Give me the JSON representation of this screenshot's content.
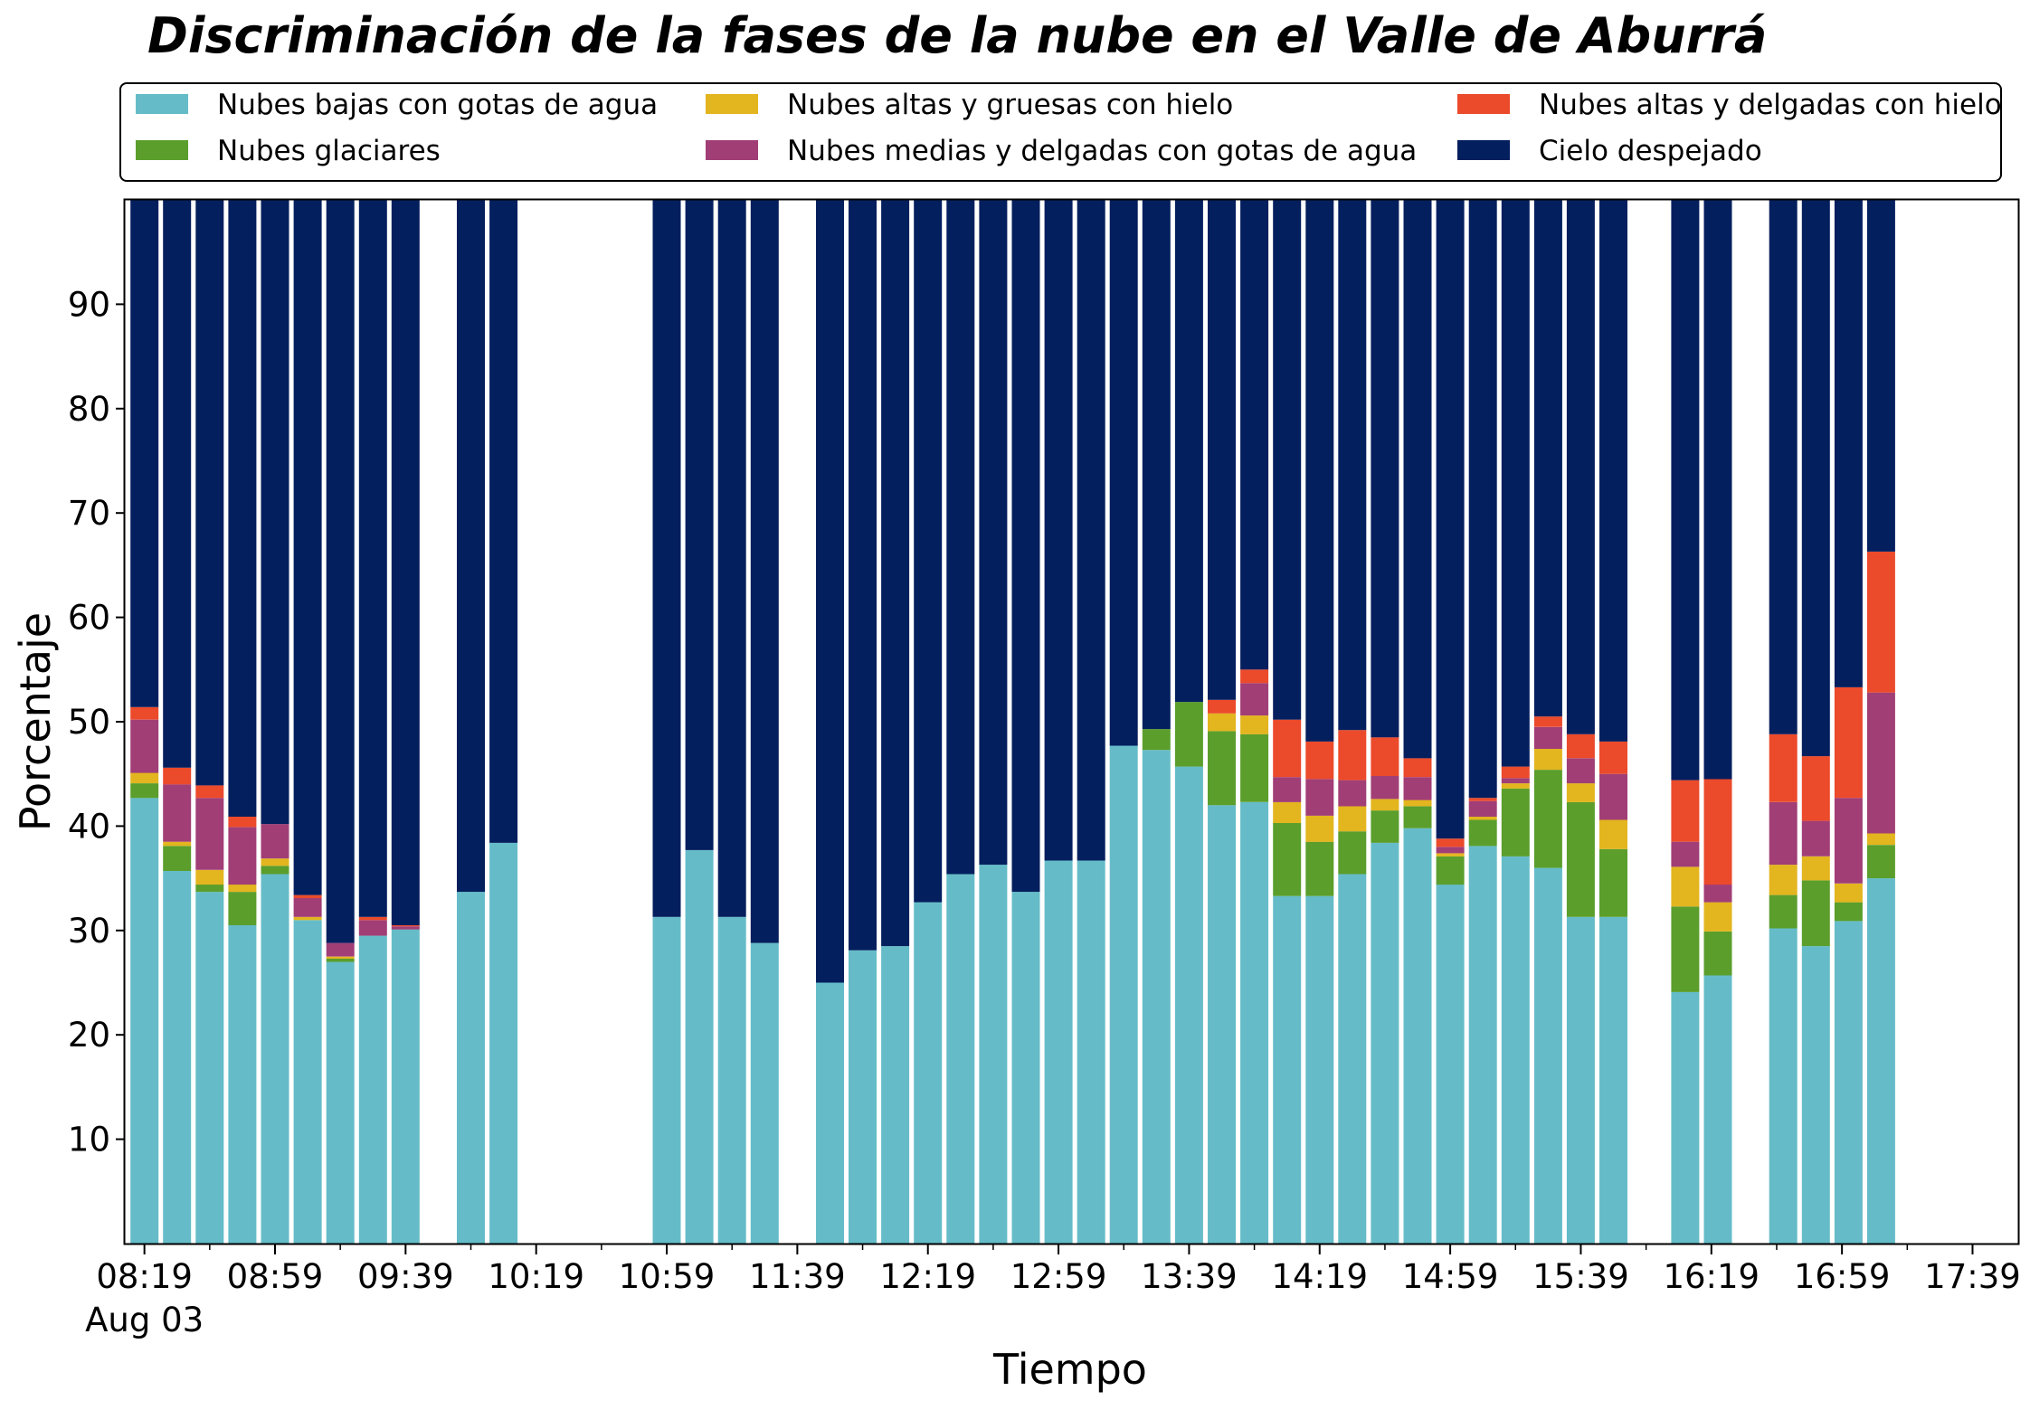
{
  "chart_data": {
    "type": "bar",
    "stacked": true,
    "title": "Discriminación de la fases de la nube en el Valle de Aburrá",
    "xlabel": "Tiempo",
    "ylabel": "Porcentaje",
    "ylim": [
      0,
      100
    ],
    "yticks": [
      10,
      20,
      30,
      40,
      50,
      60,
      70,
      80,
      90
    ],
    "x_range_minutes": [
      "08:13",
      "17:53"
    ],
    "xticks": [
      {
        "time": "08:19",
        "label": "08:19",
        "sublabel": "Aug 03"
      },
      {
        "time": "08:59",
        "label": "08:59"
      },
      {
        "time": "09:39",
        "label": "09:39"
      },
      {
        "time": "10:19",
        "label": "10:19"
      },
      {
        "time": "10:59",
        "label": "10:59"
      },
      {
        "time": "11:39",
        "label": "11:39"
      },
      {
        "time": "12:19",
        "label": "12:19"
      },
      {
        "time": "12:59",
        "label": "12:59"
      },
      {
        "time": "13:39",
        "label": "13:39"
      },
      {
        "time": "14:19",
        "label": "14:19"
      },
      {
        "time": "14:59",
        "label": "14:59"
      },
      {
        "time": "15:39",
        "label": "15:39"
      },
      {
        "time": "16:19",
        "label": "16:19"
      },
      {
        "time": "16:59",
        "label": "16:59"
      },
      {
        "time": "17:39",
        "label": "17:39"
      }
    ],
    "grid": false,
    "legend_position": "top",
    "times": [
      "08:19",
      "08:29",
      "08:39",
      "08:49",
      "08:59",
      "09:09",
      "09:19",
      "09:29",
      "09:39",
      "09:59",
      "10:09",
      "10:59",
      "11:09",
      "11:19",
      "11:29",
      "11:49",
      "11:59",
      "12:09",
      "12:19",
      "12:29",
      "12:39",
      "12:49",
      "12:59",
      "13:09",
      "13:19",
      "13:29",
      "13:39",
      "13:49",
      "13:59",
      "14:09",
      "14:19",
      "14:29",
      "14:39",
      "14:49",
      "14:59",
      "15:09",
      "15:19",
      "15:29",
      "15:39",
      "15:49",
      "16:11",
      "16:21",
      "16:41",
      "16:51",
      "17:01",
      "17:11"
    ],
    "series": [
      {
        "name": "Nubes bajas con gotas de agua",
        "color": "#65BCC8",
        "values": [
          42.7,
          35.7,
          33.7,
          30.5,
          35.4,
          31.0,
          27.0,
          29.5,
          30.1,
          33.7,
          38.4,
          31.3,
          37.7,
          31.3,
          28.8,
          25.0,
          28.1,
          28.5,
          32.7,
          35.4,
          36.3,
          33.7,
          36.7,
          36.7,
          47.7,
          47.3,
          45.7,
          42.0,
          42.3,
          33.3,
          33.3,
          35.4,
          38.4,
          39.8,
          34.4,
          38.1,
          37.1,
          36.0,
          31.3,
          31.3,
          24.1,
          25.7,
          30.2,
          28.5,
          30.9,
          35.0
        ]
      },
      {
        "name": "Nubes glaciares",
        "color": "#5B9E2C",
        "values": [
          1.4,
          2.4,
          0.7,
          3.2,
          0.8,
          0,
          0.3,
          0,
          0,
          0,
          0,
          0,
          0,
          0,
          0,
          0,
          0,
          0,
          0,
          0,
          0,
          0,
          0,
          0,
          0,
          2.0,
          6.2,
          7.1,
          6.5,
          7.0,
          5.2,
          4.1,
          3.1,
          2.1,
          2.7,
          2.5,
          6.5,
          9.4,
          11.0,
          6.5,
          8.2,
          4.2,
          3.2,
          6.3,
          1.8,
          3.2
        ]
      },
      {
        "name": "Nubes altas y gruesas con hielo",
        "color": "#E3B51F",
        "values": [
          1.0,
          0.4,
          1.4,
          0.7,
          0.7,
          0.3,
          0.2,
          0,
          0,
          0,
          0,
          0,
          0,
          0,
          0,
          0,
          0,
          0,
          0,
          0,
          0,
          0,
          0,
          0,
          0,
          0,
          0,
          1.7,
          1.8,
          2.0,
          2.5,
          2.4,
          1.1,
          0.6,
          0.3,
          0.3,
          0.5,
          2.0,
          1.8,
          2.8,
          3.8,
          2.8,
          2.9,
          2.3,
          1.8,
          1.1
        ]
      },
      {
        "name": "Nubes medias y delgadas con gotas de agua",
        "color": "#A13E76",
        "values": [
          5.1,
          5.5,
          6.9,
          5.5,
          3.3,
          1.8,
          1.3,
          1.5,
          0.3,
          0,
          0,
          0,
          0,
          0,
          0,
          0,
          0,
          0,
          0,
          0,
          0,
          0,
          0,
          0,
          0,
          0,
          0,
          0,
          3.1,
          2.4,
          3.5,
          2.5,
          2.2,
          2.2,
          0.6,
          1.5,
          0.5,
          2.1,
          2.4,
          4.4,
          2.4,
          1.7,
          6.0,
          3.4,
          8.2,
          13.5
        ]
      },
      {
        "name": "Nubes altas y delgadas con hielo",
        "color": "#EB4A2B",
        "values": [
          1.2,
          1.6,
          1.2,
          1.0,
          0,
          0.3,
          0,
          0.3,
          0.1,
          0,
          0,
          0,
          0,
          0,
          0,
          0,
          0,
          0,
          0,
          0,
          0,
          0,
          0,
          0,
          0,
          0,
          0,
          1.3,
          1.3,
          5.5,
          3.6,
          4.8,
          3.7,
          1.8,
          0.8,
          0.3,
          1.1,
          1.0,
          2.3,
          3.1,
          5.9,
          10.1,
          6.5,
          6.2,
          10.6,
          13.5
        ]
      },
      {
        "name": "Cielo despejado",
        "color": "#041F5E",
        "values": [
          48.6,
          54.4,
          56.1,
          59.1,
          59.8,
          66.6,
          71.2,
          68.7,
          69.5,
          66.3,
          61.6,
          68.7,
          62.3,
          68.7,
          71.2,
          75.0,
          71.9,
          71.5,
          67.3,
          64.6,
          63.7,
          66.3,
          63.3,
          63.3,
          52.3,
          50.7,
          48.1,
          47.9,
          45.0,
          49.8,
          51.9,
          50.8,
          51.5,
          53.5,
          61.2,
          57.3,
          54.3,
          49.5,
          51.2,
          51.9,
          55.6,
          55.5,
          51.2,
          53.3,
          46.7,
          33.7
        ]
      }
    ]
  }
}
